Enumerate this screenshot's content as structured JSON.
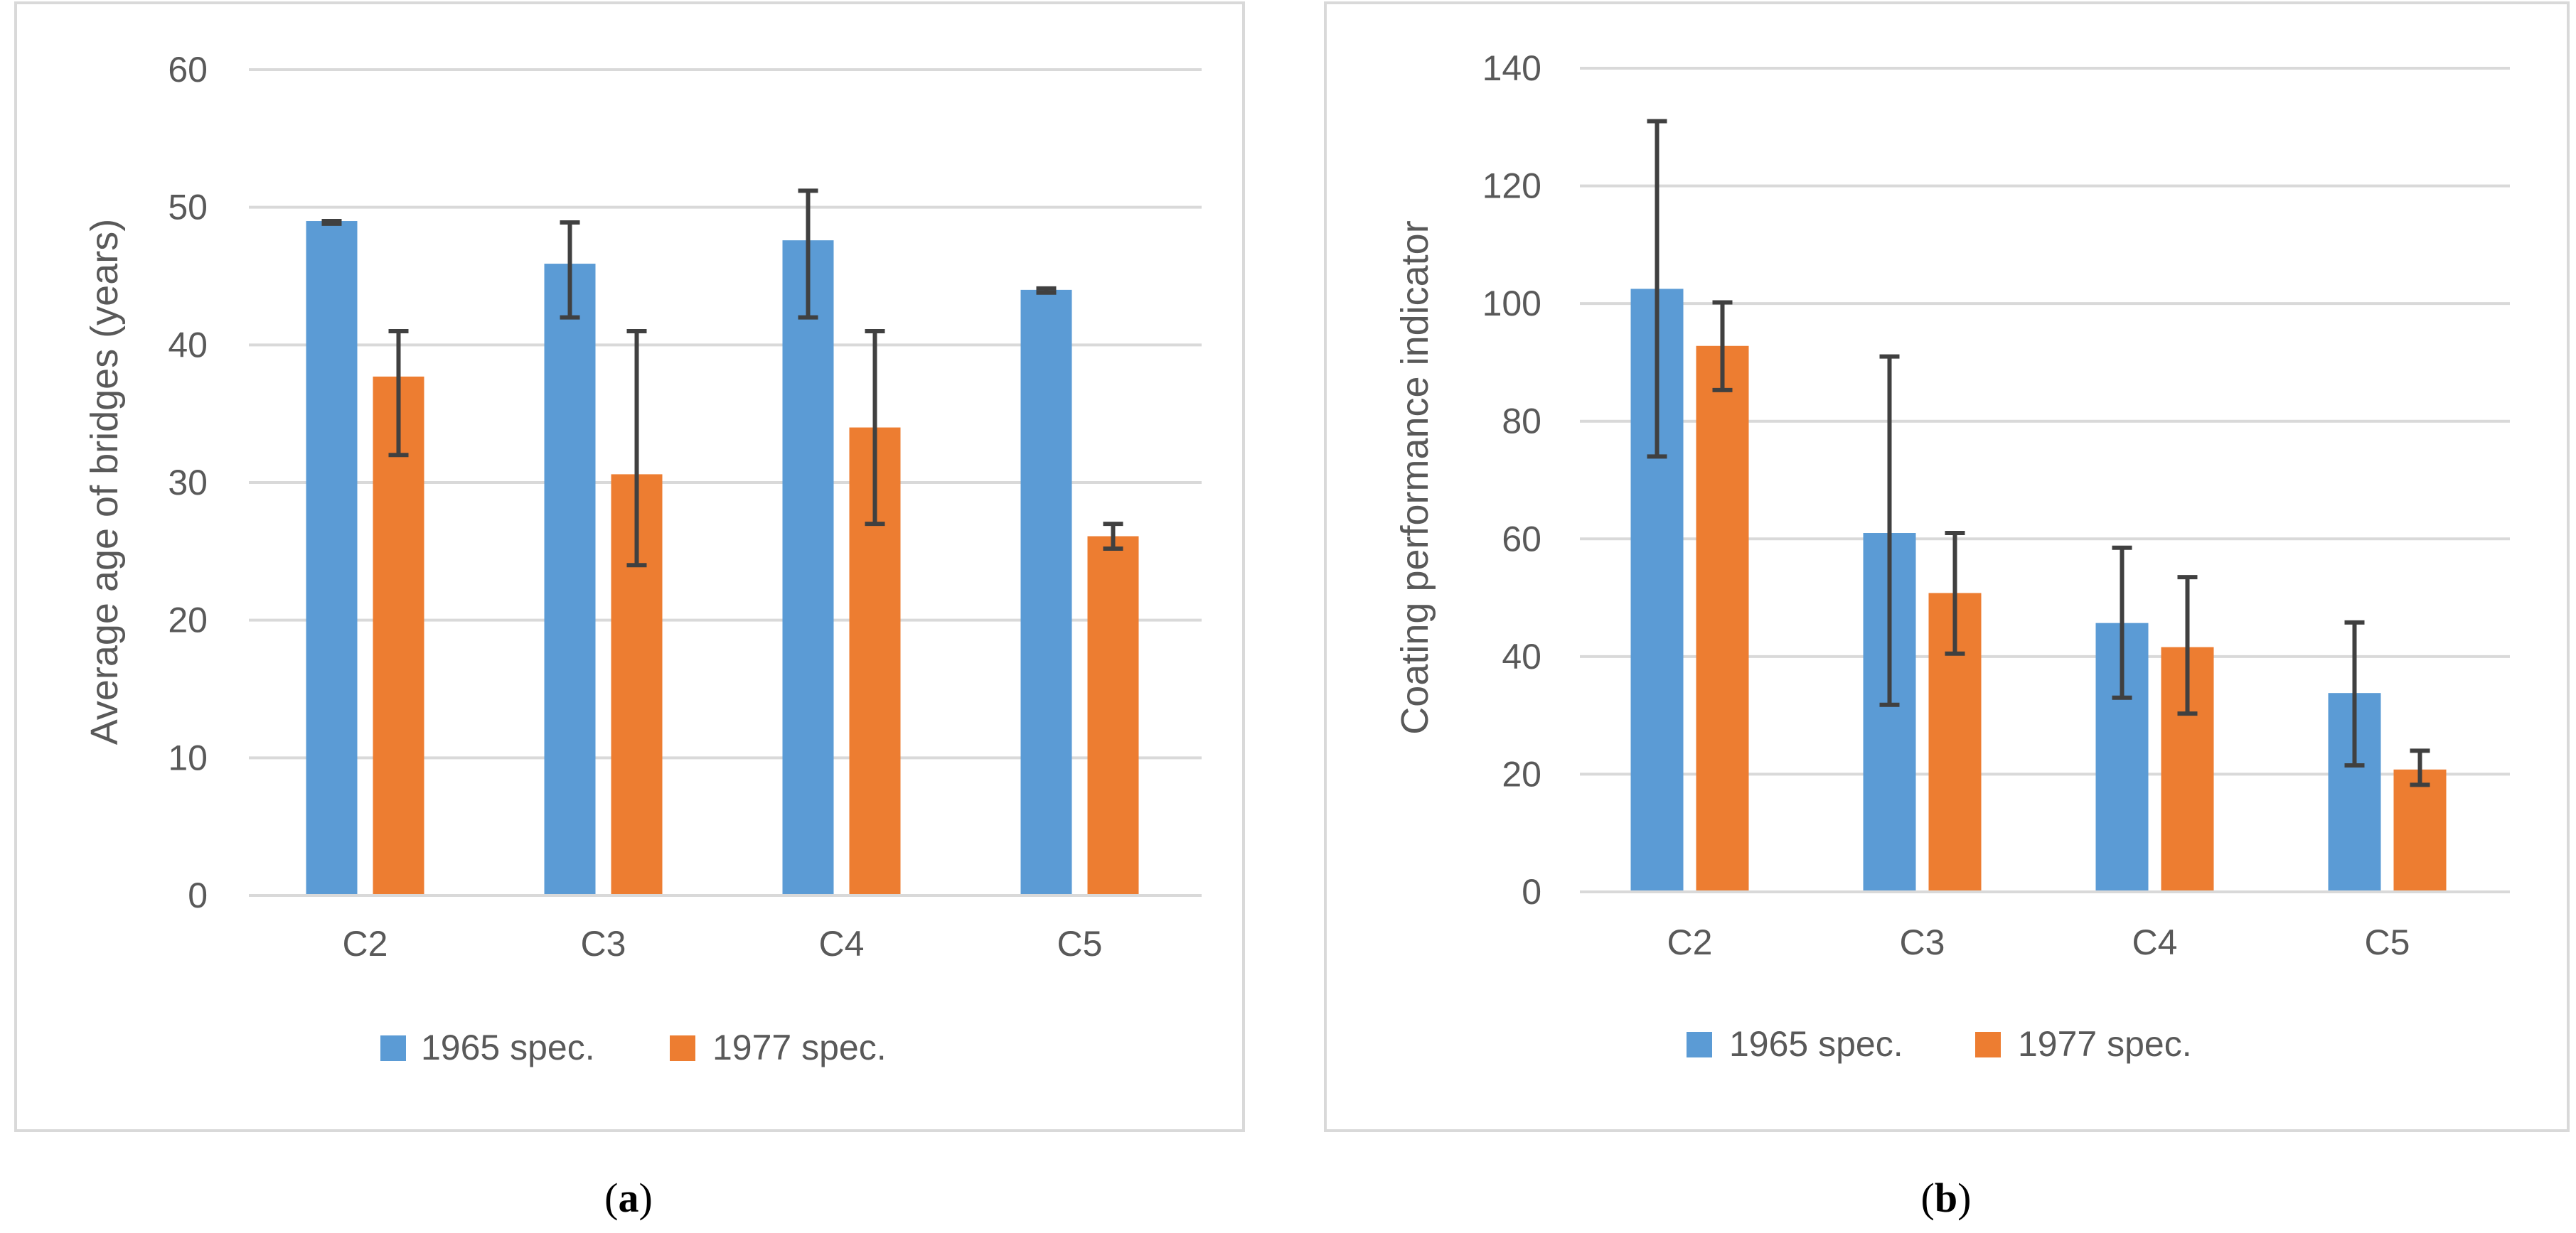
{
  "colors": {
    "series_1965": "#5B9BD5",
    "series_1977": "#ED7D31",
    "grid": "#D9D9D9",
    "error_bar": "#404040",
    "frame": "#D9D9D9"
  },
  "chart_data": [
    {
      "type": "bar",
      "panel": "(a)",
      "panel_letter": "a",
      "title": "",
      "xlabel": "",
      "ylabel": "Average age of bridges (years)",
      "categories": [
        "C2",
        "C3",
        "C4",
        "C5"
      ],
      "ylim": [
        0,
        60
      ],
      "yticks": [
        0,
        10,
        20,
        30,
        40,
        50,
        60
      ],
      "grid": true,
      "legend": "bottom",
      "series": [
        {
          "name": "1965 spec.",
          "values": [
            49,
            45.9,
            47.6,
            44
          ],
          "err_low": [
            48.8,
            42,
            42,
            43.8
          ],
          "err_high": [
            49,
            48.9,
            51.2,
            44.1
          ]
        },
        {
          "name": "1977 spec.",
          "values": [
            37.7,
            30.6,
            34,
            26.1
          ],
          "err_low": [
            32,
            24,
            27,
            25.2
          ],
          "err_high": [
            41,
            41,
            41,
            27
          ]
        }
      ]
    },
    {
      "type": "bar",
      "panel": "(b)",
      "panel_letter": "b",
      "title": "",
      "xlabel": "",
      "ylabel": "Coating performance indicator",
      "categories": [
        "C2",
        "C3",
        "C4",
        "C5"
      ],
      "ylim": [
        0,
        140
      ],
      "yticks": [
        0,
        20,
        40,
        60,
        80,
        100,
        120,
        140
      ],
      "grid": true,
      "legend": "bottom",
      "series": [
        {
          "name": "1965 spec.",
          "values": [
            102.5,
            61,
            45.7,
            33.8
          ],
          "err_low": [
            74,
            31.8,
            33,
            21.5
          ],
          "err_high": [
            131,
            91,
            58.5,
            45.8
          ]
        },
        {
          "name": "1977 spec.",
          "values": [
            92.8,
            50.8,
            41.6,
            20.8
          ],
          "err_low": [
            85.3,
            40.5,
            30.3,
            18.2
          ],
          "err_high": [
            100.2,
            61,
            53.5,
            24
          ]
        }
      ]
    }
  ]
}
